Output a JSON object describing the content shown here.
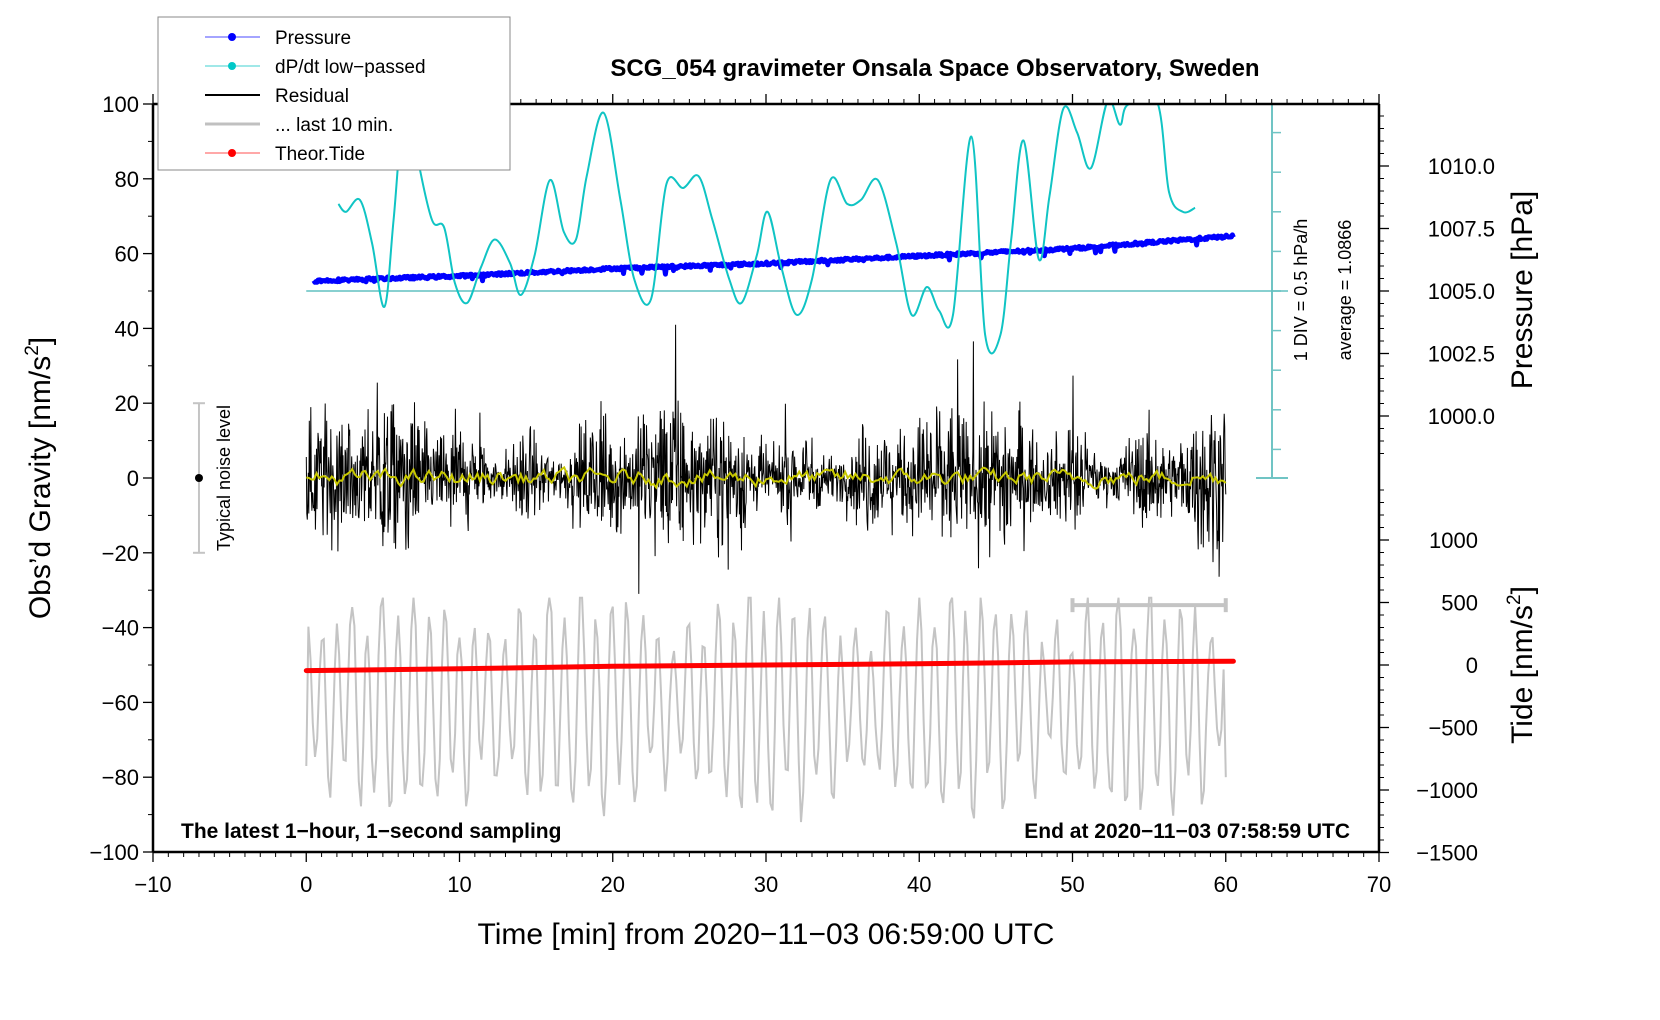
{
  "chart_data": {
    "type": "line",
    "title": "SCG_054 gravimeter Onsala Space Observatory, Sweden",
    "xlabel": "Time [min] from 2020−11−03 06:59:00 UTC",
    "ylabel_left": "Obs’d Gravity [nm/s²]",
    "ylabel_left_base": "Obs’d Gravity [nm/s",
    "ylabel_left_sup": "2",
    "ylabel_left_end": "]",
    "ylabel_right_pressure": "Pressure [hPa]",
    "ylabel_right_tide_base": "Tide [nm/s",
    "ylabel_right_tide_sup": "2",
    "ylabel_right_tide_end": "]",
    "xlim": [
      -10,
      70
    ],
    "ylim": [
      -100,
      100
    ],
    "pressure_lim_note": "1000.0 to 1010.0 tick labels",
    "tide_lim": [
      -1500,
      1000
    ],
    "x_ticks": [
      "−10",
      "0",
      "10",
      "20",
      "30",
      "40",
      "50",
      "60",
      "70"
    ],
    "x_tick_values": [
      -10,
      0,
      10,
      20,
      30,
      40,
      50,
      60,
      70
    ],
    "y_ticks": [
      "100",
      "80",
      "60",
      "40",
      "20",
      "0",
      "−20",
      "−40",
      "−60",
      "−80",
      "−100"
    ],
    "y_tick_values": [
      100,
      80,
      60,
      40,
      20,
      0,
      -20,
      -40,
      -60,
      -80,
      -100
    ],
    "pressure_ticks": [
      "1010.0",
      "1007.5",
      "1005.0",
      "1002.5",
      "1000.0"
    ],
    "pressure_tick_values": [
      1010.0,
      1007.5,
      1005.0,
      1002.5,
      1000.0
    ],
    "tide_ticks": [
      "1000",
      "500",
      "0",
      "−500",
      "−1000",
      "−1500"
    ],
    "tide_tick_values": [
      1000,
      500,
      0,
      -500,
      -1000,
      -1500
    ],
    "legend": {
      "placement": "top-left",
      "entries": [
        {
          "label": "Pressure",
          "color": "#0000ff",
          "marker": "dot"
        },
        {
          "label": "dP/dt low−passed",
          "color": "#00c8c8",
          "marker": "dot"
        },
        {
          "label": "Residual",
          "color": "#000000",
          "marker": "line"
        },
        {
          "label": "... last 10 min.",
          "color": "#c0c0c0",
          "marker": "thick-line"
        },
        {
          "label": "Theor.Tide",
          "color": "#ff0000",
          "marker": "dot"
        }
      ]
    },
    "series": [
      {
        "name": "Pressure",
        "axis": "pressure",
        "color": "#0000ff",
        "x": [
          0.5,
          10,
          20,
          30,
          40,
          50,
          60.5
        ],
        "values": [
          1005.4,
          1005.6,
          1005.9,
          1006.1,
          1006.4,
          1006.7,
          1007.2
        ]
      },
      {
        "name": "dP/dt low-passed",
        "axis": "dpdt_divisions",
        "color": "#00c0c0",
        "note": "values in scale-bar divisions relative to average line (1 DIV = 0.5 hPa/h)",
        "x": [
          2.1,
          2.6,
          3.5,
          4.3,
          5.1,
          5.7,
          6.5,
          7.2,
          8.2,
          9.0,
          9.7,
          10.5,
          11.4,
          12.3,
          13.3,
          14.0,
          14.9,
          15.9,
          16.8,
          17.6,
          18.3,
          19.4,
          20.5,
          21.4,
          22.5,
          23.5,
          24.6,
          25.6,
          26.5,
          27.6,
          28.4,
          29.4,
          30.1,
          31.0,
          32.0,
          33.0,
          34.2,
          35.3,
          36.2,
          37.3,
          38.5,
          39.5,
          40.5,
          41.3,
          42.2,
          43.4,
          44.3,
          45.3,
          46.0,
          46.8,
          47.8,
          48.5,
          49.4,
          50.3,
          51.2,
          52.3,
          53.1,
          53.6,
          55.5,
          56.3,
          57.2,
          58.0
        ],
        "values": [
          2.2,
          2.0,
          2.3,
          1.2,
          -0.4,
          1.8,
          5.2,
          3.5,
          1.8,
          1.6,
          0.2,
          -0.3,
          0.6,
          1.3,
          0.7,
          -0.1,
          0.9,
          2.8,
          1.5,
          1.3,
          2.9,
          4.5,
          2.3,
          0.3,
          -0.2,
          2.7,
          2.6,
          2.9,
          1.8,
          0.3,
          -0.3,
          0.9,
          2.0,
          0.6,
          -0.6,
          0.3,
          2.8,
          2.2,
          2.3,
          2.8,
          1.2,
          -0.6,
          0.1,
          -0.5,
          -0.6,
          3.9,
          -1.1,
          -1.1,
          1.3,
          3.8,
          0.8,
          2.4,
          4.6,
          4.0,
          3.1,
          4.8,
          4.2,
          4.7,
          4.8,
          2.5,
          2.0,
          2.1
        ]
      },
      {
        "name": "Residual",
        "axis": "gravity",
        "color": "#000000",
        "x_range": [
          0,
          60
        ],
        "envelope": "approx. ±30 nm/s² noise, peaks to about +40 and −38"
      },
      {
        "name": "Residual smoothed",
        "axis": "gravity",
        "color": "#c8c800",
        "x_range": [
          0,
          60
        ],
        "envelope": "approx. 0 ± 3 nm/s²"
      },
      {
        "name": "... last 10 min.",
        "axis": "gravity",
        "color": "#c0c0c0",
        "x_range": [
          0,
          60
        ],
        "note": "10-minute window stretched across full 60-min axis",
        "envelope": "approx. −77 to −35 nm/s² (centered near −60)"
      },
      {
        "name": "Theor.Tide",
        "axis": "tide",
        "color": "#ff0000",
        "x": [
          0,
          10,
          20,
          30,
          40,
          50,
          60.5
        ],
        "values": [
          -45,
          -30,
          -10,
          0,
          10,
          25,
          30
        ]
      }
    ],
    "dpdt_scale": {
      "label": "1 DIV = 0.5 hPa/h",
      "average_label": "average = 1.0866",
      "divisions": 9
    },
    "noise_bar": {
      "label": "Typical noise level",
      "center": 0,
      "range": [
        -20,
        20
      ],
      "x": -7
    },
    "ten_min_bar": {
      "x_range": [
        50,
        60
      ],
      "y": -34
    },
    "annotations": {
      "bottom_left": "The latest 1−hour, 1−second sampling",
      "bottom_right": "End at 2020−11−03 07:58:59 UTC"
    },
    "grid": false
  }
}
